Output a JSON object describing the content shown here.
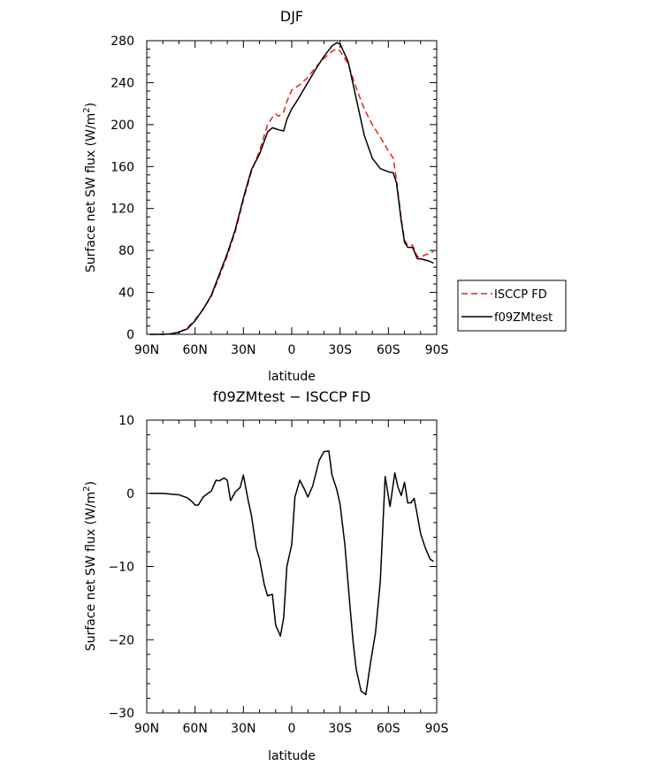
{
  "chart_data": [
    {
      "type": "line",
      "title": "DJF",
      "xlabel": "latitude",
      "ylabel": "Surface net SW flux (W/m",
      "ylabel_sup": "2",
      "ylabel_end": ")",
      "xlim": [
        90,
        -90
      ],
      "ylim": [
        0,
        280
      ],
      "xticks": [
        90,
        60,
        30,
        0,
        -30,
        -60,
        -90
      ],
      "xtick_labels": [
        "90N",
        "60N",
        "30N",
        "0",
        "30S",
        "60S",
        "90S"
      ],
      "yticks": [
        0,
        40,
        80,
        120,
        160,
        200,
        240,
        280
      ],
      "ytick_labels": [
        "0",
        "40",
        "80",
        "120",
        "160",
        "200",
        "240",
        "280"
      ],
      "legend": "right-outside",
      "series": [
        {
          "name": "ISCCP FD",
          "color": "#e8211f",
          "dash": "dashed",
          "x": [
            88,
            85,
            80,
            75,
            70,
            65,
            60,
            55,
            50,
            45,
            40,
            35,
            30,
            25,
            20,
            15,
            12,
            10,
            8,
            5,
            3,
            0,
            -3,
            -5,
            -10,
            -15,
            -20,
            -25,
            -28,
            -30,
            -35,
            -40,
            -45,
            -50,
            -55,
            -60,
            -63,
            -65,
            -68,
            -70,
            -72,
            -75,
            -78,
            -80,
            -85,
            -88
          ],
          "y": [
            0,
            0,
            0,
            0.5,
            2,
            6,
            14,
            24,
            36,
            55,
            75,
            98,
            128,
            155,
            175,
            200,
            207,
            210,
            208,
            212,
            222,
            233,
            236,
            238,
            245,
            255,
            263,
            270,
            272,
            270,
            258,
            235,
            215,
            200,
            188,
            175,
            168,
            148,
            110,
            90,
            85,
            85,
            74,
            74,
            77,
            79
          ]
        },
        {
          "name": "f09ZMtest",
          "color": "#000000",
          "dash": "solid",
          "x": [
            88,
            85,
            80,
            75,
            70,
            65,
            60,
            55,
            50,
            45,
            40,
            35,
            30,
            25,
            20,
            15,
            12,
            10,
            8,
            5,
            3,
            0,
            -3,
            -5,
            -10,
            -15,
            -20,
            -25,
            -28,
            -30,
            -35,
            -40,
            -45,
            -50,
            -55,
            -60,
            -63,
            -65,
            -68,
            -70,
            -72,
            -75,
            -78,
            -80,
            -85,
            -88
          ],
          "y": [
            0,
            0,
            0,
            0.5,
            2,
            5,
            13,
            24,
            37,
            57,
            77,
            100,
            130,
            157,
            172,
            193,
            197,
            196,
            195,
            194,
            205,
            215,
            222,
            227,
            240,
            253,
            265,
            275,
            278,
            277,
            260,
            225,
            190,
            168,
            158,
            155,
            154,
            145,
            108,
            88,
            83,
            83,
            72,
            72,
            70,
            68
          ]
        }
      ]
    },
    {
      "type": "line",
      "title": "f09ZMtest − ISCCP FD",
      "xlabel": "latitude",
      "ylabel": "Surface net SW flux (W/m",
      "ylabel_sup": "2",
      "ylabel_end": ")",
      "xlim": [
        90,
        -90
      ],
      "ylim": [
        -30,
        10
      ],
      "xticks": [
        90,
        60,
        30,
        0,
        -30,
        -60,
        -90
      ],
      "xtick_labels": [
        "90N",
        "60N",
        "30N",
        "0",
        "30S",
        "60S",
        "90S"
      ],
      "yticks": [
        -30,
        -20,
        -10,
        0,
        10
      ],
      "ytick_labels": [
        "−30",
        "−20",
        "−10",
        "0",
        "10"
      ],
      "series": [
        {
          "name": "",
          "color": "#000000",
          "dash": "solid",
          "x": [
            88,
            85,
            80,
            75,
            70,
            65,
            62,
            60,
            58,
            55,
            52,
            50,
            47,
            45,
            42,
            40,
            38,
            35,
            32,
            30,
            27,
            25,
            22,
            20,
            17,
            15,
            12,
            10,
            7,
            5,
            3,
            0,
            -2,
            -5,
            -8,
            -10,
            -13,
            -17,
            -20,
            -23,
            -25,
            -28,
            -30,
            -33,
            -36,
            -38,
            -40,
            -43,
            -46,
            -49,
            -52,
            -55,
            -58,
            -61,
            -64,
            -66,
            -68,
            -70,
            -72,
            -74,
            -76,
            -78,
            -80,
            -83,
            -86,
            -88
          ],
          "y": [
            0,
            0,
            0,
            -0.1,
            -0.2,
            -0.6,
            -1.1,
            -1.6,
            -1.6,
            -0.5,
            0,
            0.3,
            1.8,
            1.7,
            2.1,
            1.8,
            -1,
            0.2,
            0.8,
            2.5,
            -1,
            -3,
            -7.5,
            -9,
            -12.5,
            -14,
            -13.8,
            -18,
            -19.5,
            -17,
            -10,
            -7,
            -0.5,
            1.8,
            0.5,
            -0.5,
            1,
            4.5,
            5.7,
            5.8,
            2.5,
            0.5,
            -1.5,
            -7,
            -15,
            -20,
            -24,
            -27,
            -27.5,
            -23,
            -19,
            -12,
            2.3,
            -1.8,
            2.8,
            0.8,
            -0.3,
            1.5,
            -1.3,
            -1.3,
            -0.7,
            -3,
            -5.5,
            -7.5,
            -9,
            -9.3
          ]
        }
      ]
    }
  ]
}
